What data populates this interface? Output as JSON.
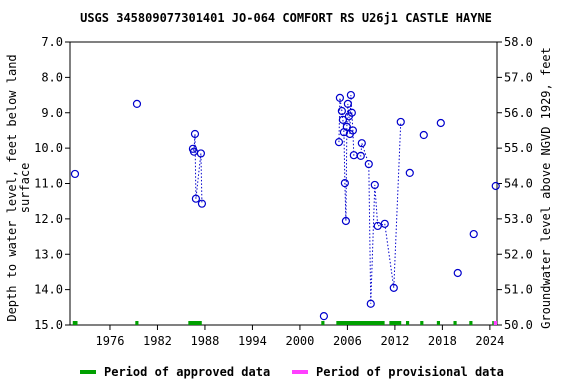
{
  "chart_data": {
    "type": "scatter",
    "title": "USGS 345809077301401 JO-064 COMFORT RS U26j1 CASTLE HAYNE",
    "ylabel": [
      "Depth to water level, feet below land",
      "surface"
    ],
    "y2label": "Groundwater level above NGVD 1929, feet",
    "xlim": [
      1970.95,
      2024.9
    ],
    "xticks": [
      1976,
      1982,
      1988,
      1994,
      2000,
      2006,
      2012,
      2018,
      2024
    ],
    "ylim": [
      7.0,
      15.0
    ],
    "y_inverted": true,
    "yticks": [
      {
        "value": 7,
        "label": "7.0"
      },
      {
        "value": 8,
        "label": "8.0"
      },
      {
        "value": 9,
        "label": "9.0"
      },
      {
        "value": 10,
        "label": "10.0"
      },
      {
        "value": 11,
        "label": "11.0"
      },
      {
        "value": 12,
        "label": "12.0"
      },
      {
        "value": 13,
        "label": "13.0"
      },
      {
        "value": 14,
        "label": "14.0"
      },
      {
        "value": 15,
        "label": "15.0"
      }
    ],
    "y2lim": [
      50.0,
      58.0
    ],
    "y2ticks": [
      {
        "value": 58,
        "label": "58.0"
      },
      {
        "value": 57,
        "label": "57.0"
      },
      {
        "value": 56,
        "label": "56.0"
      },
      {
        "value": 55,
        "label": "55.0"
      },
      {
        "value": 54,
        "label": "54.0"
      },
      {
        "value": 53,
        "label": "53.0"
      },
      {
        "value": 52,
        "label": "52.0"
      },
      {
        "value": 51,
        "label": "51.0"
      },
      {
        "value": 50,
        "label": "50.0"
      }
    ],
    "series": [
      {
        "color": "#0000cc",
        "x": [
          1971.58,
          null,
          1979.41,
          null,
          1986.48,
          1986.61,
          1986.74,
          1986.86,
          1987.49,
          1987.62,
          null,
          2003.03,
          null,
          2004.93,
          2005.05,
          2005.3,
          2005.43,
          2005.56,
          2005.68,
          2005.81,
          2005.93,
          2006.06,
          2006.19,
          2006.31,
          2006.44,
          2006.56,
          2006.69,
          2006.81,
          2007.69,
          2007.82,
          2008.7,
          2008.95,
          2009.46,
          2009.83,
          2010.72,
          2011.86,
          2012.74,
          null,
          2013.88,
          null,
          2015.65,
          null,
          2017.8,
          null,
          2019.94,
          null,
          2021.96,
          null,
          2024.74
        ],
        "values": [
          10.73,
          null,
          8.75,
          null,
          10.02,
          10.1,
          9.6,
          11.43,
          10.15,
          11.57,
          null,
          14.75,
          null,
          9.83,
          8.58,
          8.95,
          9.2,
          9.55,
          10.99,
          12.06,
          9.4,
          8.75,
          9.1,
          9.6,
          8.5,
          9.0,
          9.5,
          10.2,
          10.22,
          9.86,
          10.45,
          14.4,
          11.04,
          12.2,
          12.14,
          13.95,
          9.26,
          null,
          10.7,
          null,
          9.63,
          null,
          9.29,
          null,
          13.53,
          null,
          12.43,
          null,
          11.07
        ]
      }
    ],
    "periods": [
      {
        "name": "Period of approved data",
        "color": "#00a000",
        "ranges": [
          [
            1971.3,
            1971.9
          ],
          [
            1979.2,
            1979.6
          ],
          [
            1985.9,
            1987.6
          ],
          [
            2002.7,
            2003.1
          ],
          [
            2004.6,
            2010.7
          ],
          [
            2011.3,
            2012.8
          ],
          [
            2013.4,
            2013.8
          ],
          [
            2015.2,
            2015.6
          ],
          [
            2017.3,
            2017.7
          ],
          [
            2019.4,
            2019.8
          ],
          [
            2021.4,
            2021.8
          ],
          [
            2024.3,
            2024.5
          ]
        ]
      },
      {
        "name": "Period of provisional data",
        "color": "#ff40ff",
        "ranges": [
          [
            2024.5,
            2024.9
          ]
        ]
      }
    ]
  }
}
